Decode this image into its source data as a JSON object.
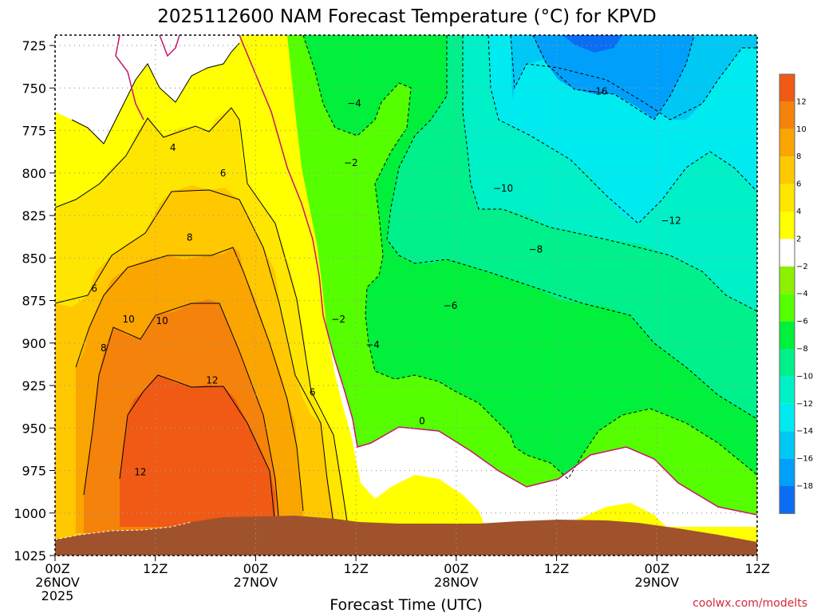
{
  "chart_data": {
    "type": "heatmap",
    "title": "2025112600 NAM Forecast Temperature (°C) for KPVD",
    "xlabel": "Forecast Time (UTC)",
    "ylabel": "",
    "y_axis": {
      "reversed": true,
      "range": [
        725,
        1025
      ],
      "ticks": [
        "725",
        "750",
        "775",
        "800",
        "825",
        "850",
        "875",
        "900",
        "925",
        "950",
        "975",
        "1000",
        "1025"
      ]
    },
    "x_axis": {
      "range_hours": [
        0,
        84
      ],
      "ticks": [
        {
          "hour": 0,
          "line1": "00Z",
          "line2": "26NOV",
          "line3": "2025"
        },
        {
          "hour": 12,
          "line1": "12Z",
          "line2": "",
          "line3": ""
        },
        {
          "hour": 24,
          "line1": "00Z",
          "line2": "27NOV",
          "line3": ""
        },
        {
          "hour": 36,
          "line1": "12Z",
          "line2": "",
          "line3": ""
        },
        {
          "hour": 48,
          "line1": "00Z",
          "line2": "28NOV",
          "line3": ""
        },
        {
          "hour": 60,
          "line1": "12Z",
          "line2": "",
          "line3": ""
        },
        {
          "hour": 72,
          "line1": "00Z",
          "line2": "29NOV",
          "line3": ""
        },
        {
          "hour": 84,
          "line1": "12Z",
          "line2": "",
          "line3": ""
        }
      ]
    },
    "grid": true,
    "colorbar": {
      "placement": "right",
      "bands": [
        {
          "label": "12",
          "color": "#f05a14"
        },
        {
          "label": "10",
          "color": "#f5820a"
        },
        {
          "label": "8",
          "color": "#faa500"
        },
        {
          "label": "6",
          "color": "#ffc800"
        },
        {
          "label": "4",
          "color": "#ffe600"
        },
        {
          "label": "2",
          "color": "#ffff00"
        },
        {
          "label": "−2",
          "color": "#ffffff"
        },
        {
          "label": "−4",
          "color": "#8cf000"
        },
        {
          "label": "−6",
          "color": "#55ff00"
        },
        {
          "label": "−8",
          "color": "#00f03c"
        },
        {
          "label": "−10",
          "color": "#00f08c"
        },
        {
          "label": "−12",
          "color": "#00f0c8"
        },
        {
          "label": "−14",
          "color": "#00ebf0"
        },
        {
          "label": "−16",
          "color": "#00c8f5"
        },
        {
          "label": "−18",
          "color": "#00a0fa"
        },
        {
          "label": "",
          "color": "#0a6ef5"
        }
      ],
      "top_color": "#e65a14"
    },
    "contour_labels": [
      {
        "text": "4",
        "hour": 14.1,
        "p": 785
      },
      {
        "text": "6",
        "hour": 20.1,
        "p": 800
      },
      {
        "text": "8",
        "hour": 16.1,
        "p": 838
      },
      {
        "text": "6",
        "hour": 4.7,
        "p": 868
      },
      {
        "text": "10",
        "hour": 8.8,
        "p": 886
      },
      {
        "text": "10",
        "hour": 12.8,
        "p": 887
      },
      {
        "text": "8",
        "hour": 5.8,
        "p": 903
      },
      {
        "text": "12",
        "hour": 18.8,
        "p": 922
      },
      {
        "text": "6",
        "hour": 30.8,
        "p": 929
      },
      {
        "text": "12",
        "hour": 10.2,
        "p": 976
      },
      {
        "text": "−4",
        "hour": 35.8,
        "p": 759
      },
      {
        "text": "−2",
        "hour": 35.4,
        "p": 794
      },
      {
        "text": "−2",
        "hour": 33.9,
        "p": 886
      },
      {
        "text": "−4",
        "hour": 38.0,
        "p": 901
      },
      {
        "text": "0",
        "hour": 43.9,
        "p": 946
      },
      {
        "text": "−6",
        "hour": 47.3,
        "p": 878
      },
      {
        "text": "−8",
        "hour": 57.5,
        "p": 845
      },
      {
        "text": "−10",
        "hour": 53.6,
        "p": 809
      },
      {
        "text": "−12",
        "hour": 73.7,
        "p": 828
      },
      {
        "text": "−16",
        "hour": 64.9,
        "p": 752
      }
    ],
    "terrain_color": "#a0522d",
    "grid_color": "#999999"
  },
  "credit": "coolwx.com/modelts"
}
